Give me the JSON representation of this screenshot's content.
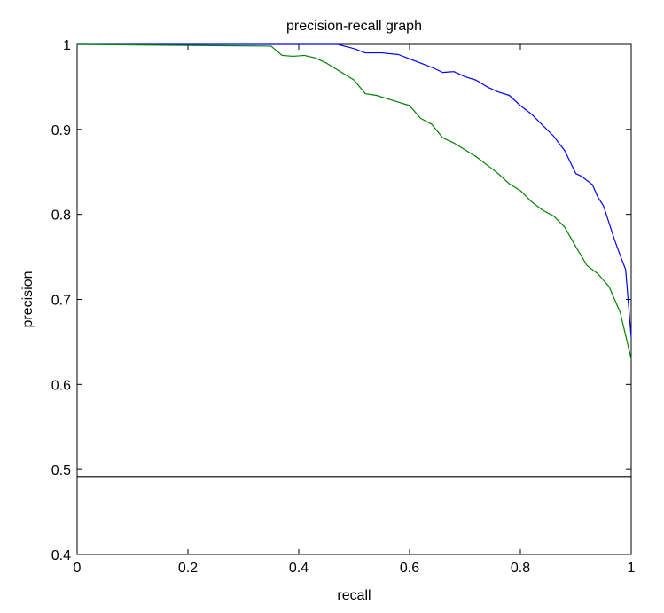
{
  "chart_data": {
    "type": "line",
    "title": "precision-recall graph",
    "xlabel": "recall",
    "ylabel": "precision",
    "xlim": [
      0,
      1
    ],
    "ylim": [
      0.4,
      1
    ],
    "xticks": [
      0,
      0.2,
      0.4,
      0.6,
      0.8,
      1
    ],
    "xtick_labels": [
      "0",
      "0.2",
      "0.4",
      "0.6",
      "0.8",
      "1"
    ],
    "yticks": [
      0.4,
      0.5,
      0.6,
      0.7,
      0.8,
      0.9,
      1
    ],
    "ytick_labels": [
      "0.4",
      "0.5",
      "0.6",
      "0.7",
      "0.8",
      "0.9",
      "1"
    ],
    "grid": false,
    "legend": false,
    "series": [
      {
        "color": "#0000ff",
        "x": [
          0.0,
          0.47,
          0.5,
          0.52,
          0.55,
          0.58,
          0.6,
          0.62,
          0.64,
          0.66,
          0.68,
          0.7,
          0.72,
          0.74,
          0.76,
          0.78,
          0.8,
          0.82,
          0.84,
          0.86,
          0.88,
          0.9,
          0.91,
          0.93,
          0.94,
          0.95,
          0.96,
          0.97,
          0.98,
          0.99,
          1.0
        ],
        "y": [
          1.0,
          1.0,
          0.995,
          0.99,
          0.99,
          0.988,
          0.983,
          0.978,
          0.973,
          0.967,
          0.968,
          0.962,
          0.958,
          0.95,
          0.944,
          0.94,
          0.928,
          0.918,
          0.905,
          0.892,
          0.875,
          0.848,
          0.845,
          0.835,
          0.82,
          0.81,
          0.79,
          0.77,
          0.752,
          0.735,
          0.655
        ]
      },
      {
        "color": "#008000",
        "x": [
          0.0,
          0.35,
          0.37,
          0.39,
          0.41,
          0.43,
          0.45,
          0.47,
          0.5,
          0.52,
          0.54,
          0.56,
          0.58,
          0.6,
          0.62,
          0.64,
          0.66,
          0.68,
          0.7,
          0.72,
          0.74,
          0.76,
          0.78,
          0.8,
          0.82,
          0.84,
          0.86,
          0.88,
          0.9,
          0.92,
          0.94,
          0.96,
          0.98,
          1.0
        ],
        "y": [
          1.0,
          0.998,
          0.987,
          0.986,
          0.987,
          0.984,
          0.978,
          0.97,
          0.958,
          0.942,
          0.94,
          0.936,
          0.932,
          0.928,
          0.913,
          0.906,
          0.89,
          0.884,
          0.876,
          0.868,
          0.858,
          0.848,
          0.836,
          0.828,
          0.815,
          0.805,
          0.798,
          0.785,
          0.762,
          0.74,
          0.73,
          0.715,
          0.685,
          0.63
        ]
      },
      {
        "color": "#000000",
        "x": [
          0,
          1
        ],
        "y": [
          0.491,
          0.491
        ]
      }
    ]
  }
}
